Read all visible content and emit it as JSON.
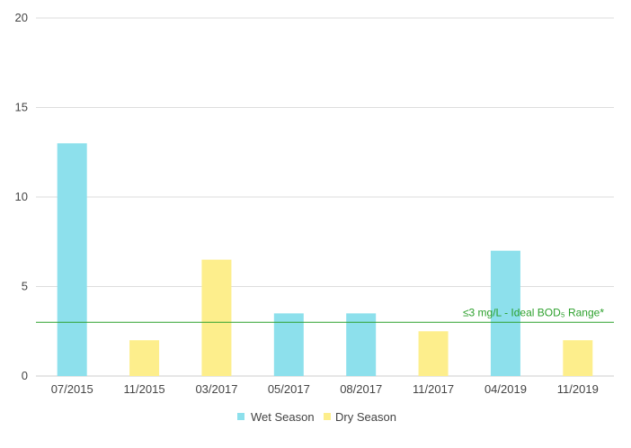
{
  "chart_data": {
    "type": "bar",
    "categories": [
      "07/2015",
      "11/2015",
      "03/2017",
      "05/2017",
      "08/2017",
      "11/2017",
      "04/2019",
      "11/2019"
    ],
    "values": [
      13,
      2,
      6.5,
      3.5,
      3.5,
      2.5,
      7,
      2
    ],
    "season": [
      "Wet Season",
      "Dry Season",
      "Dry Season",
      "Wet Season",
      "Wet Season",
      "Dry Season",
      "Wet Season",
      "Dry Season"
    ],
    "series": [
      {
        "name": "Wet Season",
        "color": "#8de0ec"
      },
      {
        "name": "Dry Season",
        "color": "#fdee8c"
      }
    ],
    "ylim": [
      0,
      20
    ],
    "yticks": [
      0,
      5,
      10,
      15,
      20
    ],
    "grid": true,
    "legend_position": "bottom-center",
    "reference_line": {
      "value": 3,
      "label": "≤3 mg/L - Ideal BOD₅ Range*",
      "color": "#2ca02c"
    },
    "title": "",
    "xlabel": "",
    "ylabel": ""
  }
}
